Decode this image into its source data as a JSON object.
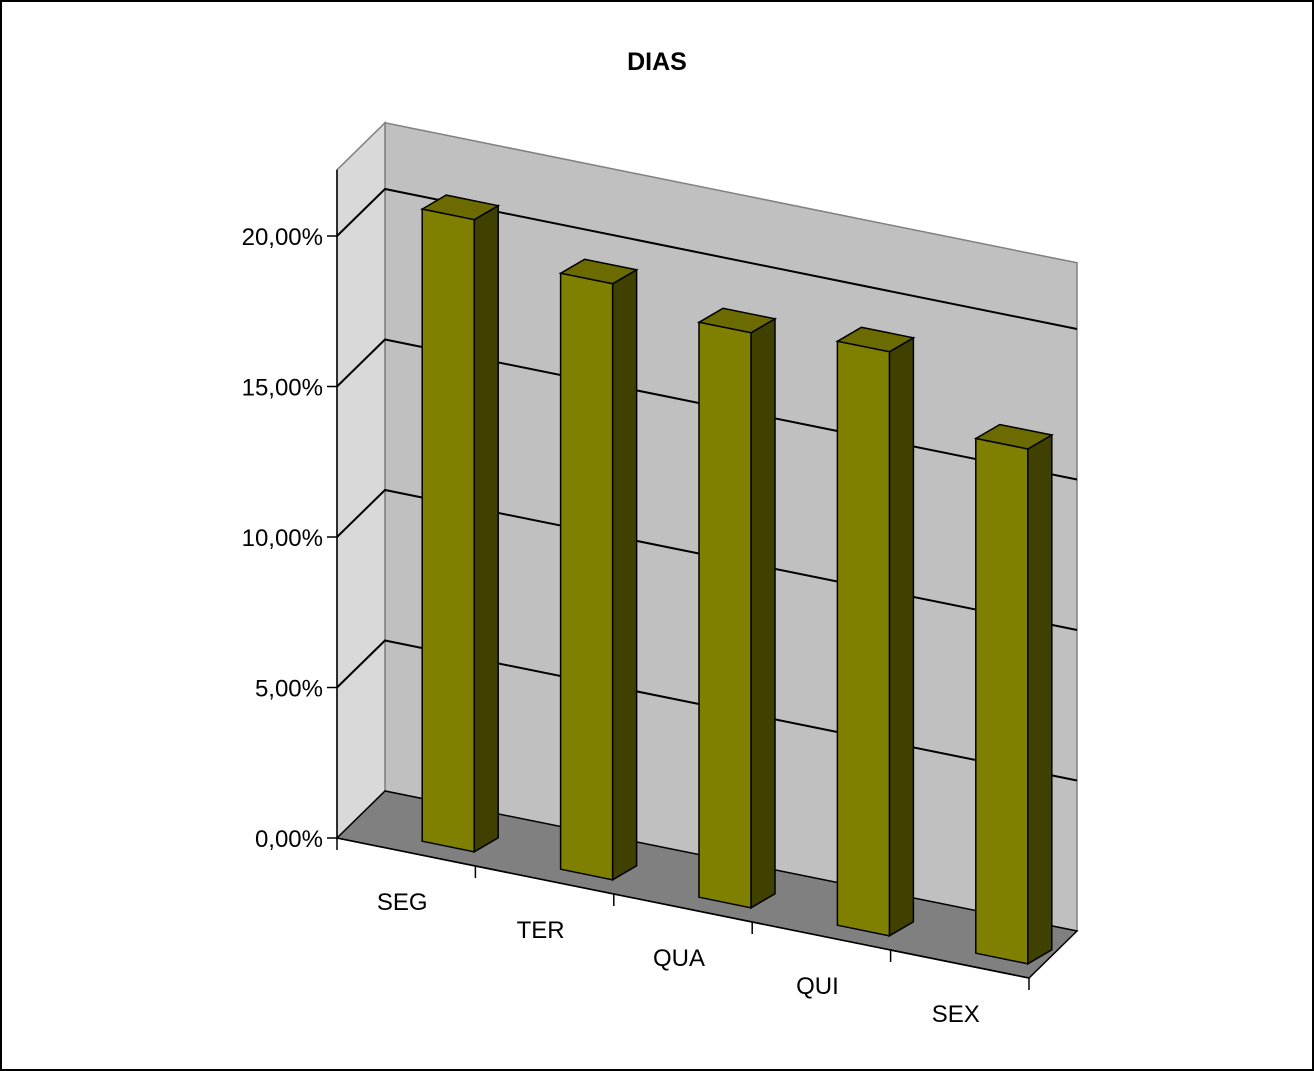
{
  "chart_data": {
    "type": "bar",
    "title": "DIAS",
    "xlabel": "",
    "ylabel": "",
    "categories": [
      "SEG",
      "TER",
      "QUA",
      "QUI",
      "SEX"
    ],
    "values": [
      21.0,
      19.8,
      19.1,
      19.4,
      17.1
    ],
    "value_unit": "%",
    "ylim": [
      0,
      20
    ],
    "yticks": [
      0,
      5,
      10,
      15,
      20
    ],
    "ytick_labels": [
      "0,00%",
      "5,00%",
      "10,00%",
      "15,00%",
      "20,00%"
    ],
    "grid": true,
    "legend": "none",
    "style": "3d-column",
    "colors": {
      "bar_front": "#808000",
      "bar_side": "#404000",
      "bar_top": "#6b6b00",
      "back_wall": "#c0c0c0",
      "side_wall": "#d9d9d9",
      "floor": "#808080",
      "gridline": "#000000"
    }
  }
}
